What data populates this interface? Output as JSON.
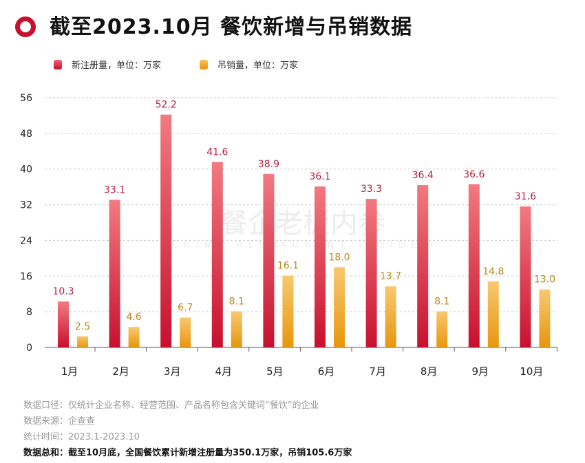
{
  "title": "截至2023.10月 餐饮新增与吊销数据",
  "watermark": {
    "cn": "餐企老板内参",
    "en": "CHINA RESTAURANT INSIDER"
  },
  "colors": {
    "accent": "#c8102e",
    "new": "#d4213d",
    "revoked": "#f0a020"
  },
  "chart_data": {
    "type": "bar",
    "categories": [
      "1月",
      "2月",
      "3月",
      "4月",
      "5月",
      "6月",
      "7月",
      "8月",
      "9月",
      "10月"
    ],
    "series": [
      {
        "name": "新注册量，单位：万家",
        "values": [
          10.3,
          33.1,
          52.2,
          41.6,
          38.9,
          36.1,
          33.3,
          36.4,
          36.6,
          31.6
        ]
      },
      {
        "name": "吊销量，单位：万家",
        "values": [
          2.5,
          4.6,
          6.7,
          8.1,
          16.1,
          18.0,
          13.7,
          8.1,
          14.8,
          13.0
        ]
      }
    ],
    "yticks": [
      0,
      8,
      16,
      24,
      32,
      40,
      48,
      56
    ],
    "ylim": [
      0,
      56
    ],
    "grid": true,
    "legend": "top-left"
  },
  "footer": {
    "scope": "数据口径：仅统计企业名称、经营范围、产品名称包含关键词“餐饮”的企业",
    "source": "数据来源：企查查",
    "period": "统计时间：2023.1-2023.10",
    "summary": "数据总和：截至10月底，全国餐饮累计新增注册量为350.1万家，吊销105.6万家"
  }
}
